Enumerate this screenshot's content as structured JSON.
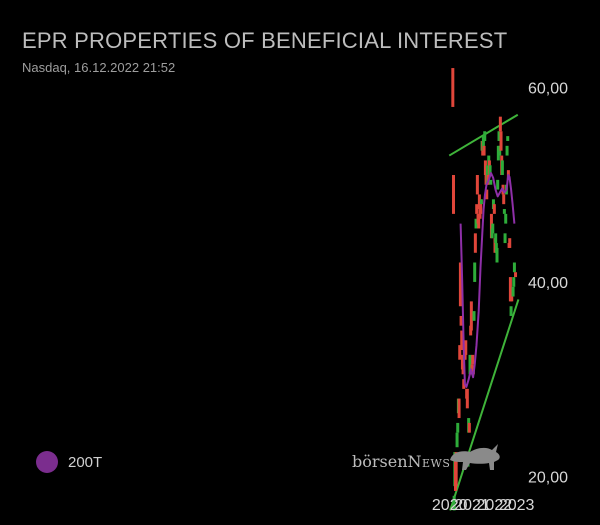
{
  "header": {
    "title": "EPR PROPERTIES OF BENEFICIAL INTEREST",
    "subtitle": "Nasdaq, 16.12.2022 21:52"
  },
  "legend": {
    "ma_label": "200T",
    "ma_color": "#7b2d8e"
  },
  "brand": {
    "part1": "börsen",
    "part2": "News"
  },
  "colors": {
    "up": "#2eac3a",
    "down": "#e0463a",
    "trend": "#3fb43a",
    "ma": "#8e2fa8",
    "axis_text": "#d8d8d8"
  },
  "chart_data": {
    "type": "candlestick",
    "title": "EPR PROPERTIES OF BENEFICIAL INTEREST",
    "subtitle": "Nasdaq, 16.12.2022 21:52",
    "x_ticks": [
      {
        "x": 2020.0,
        "label": "2020"
      },
      {
        "x": 2021.0,
        "label": "2021"
      },
      {
        "x": 2022.0,
        "label": "2022"
      },
      {
        "x": 2023.0,
        "label": "2023"
      }
    ],
    "y_ticks": [
      {
        "y": 20,
        "label": "20,00"
      },
      {
        "y": 40,
        "label": "40,00"
      },
      {
        "y": 60,
        "label": "60,00"
      }
    ],
    "xlim": [
      1999.85,
      2023.15
    ],
    "ylim": [
      15,
      69
    ],
    "candles": [
      {
        "x": 2020.05,
        "o": 70.5,
        "c": 69.0
      },
      {
        "x": 2020.08,
        "o": 72.5,
        "c": 71.0
      },
      {
        "x": 2020.11,
        "o": 73.5,
        "c": 72.5
      },
      {
        "x": 2020.14,
        "o": 62.0,
        "c": 58.0
      },
      {
        "x": 2020.17,
        "o": 51.0,
        "c": 47.0
      },
      {
        "x": 2020.2,
        "o": 16.5,
        "c": 18.0
      },
      {
        "x": 2020.23,
        "o": 19.0,
        "c": 22.5
      },
      {
        "x": 2020.26,
        "o": 22.0,
        "c": 18.5
      },
      {
        "x": 2020.29,
        "o": 22.5,
        "c": 19.0
      },
      {
        "x": 2020.33,
        "o": 23.0,
        "c": 24.5
      },
      {
        "x": 2020.36,
        "o": 24.5,
        "c": 25.5
      },
      {
        "x": 2020.39,
        "o": 26.5,
        "c": 28.0
      },
      {
        "x": 2020.42,
        "o": 28.0,
        "c": 26.0
      },
      {
        "x": 2020.45,
        "o": 33.5,
        "c": 32.0
      },
      {
        "x": 2020.48,
        "o": 42.0,
        "c": 37.5
      },
      {
        "x": 2020.51,
        "o": 36.5,
        "c": 35.5
      },
      {
        "x": 2020.54,
        "o": 35.0,
        "c": 33.0
      },
      {
        "x": 2020.57,
        "o": 32.5,
        "c": 31.0
      },
      {
        "x": 2020.6,
        "o": 31.5,
        "c": 30.5
      },
      {
        "x": 2020.63,
        "o": 30.0,
        "c": 29.0
      },
      {
        "x": 2020.66,
        "o": 32.0,
        "c": 33.5
      },
      {
        "x": 2020.69,
        "o": 33.0,
        "c": 32.0
      },
      {
        "x": 2020.72,
        "o": 34.0,
        "c": 32.5
      },
      {
        "x": 2020.76,
        "o": 29.0,
        "c": 28.0
      },
      {
        "x": 2020.79,
        "o": 29.0,
        "c": 27.0
      },
      {
        "x": 2020.82,
        "o": 21.0,
        "c": 22.0
      },
      {
        "x": 2020.85,
        "o": 24.5,
        "c": 26.0
      },
      {
        "x": 2020.88,
        "o": 25.5,
        "c": 24.5
      },
      {
        "x": 2020.91,
        "o": 30.5,
        "c": 32.5
      },
      {
        "x": 2020.94,
        "o": 35.5,
        "c": 34.5
      },
      {
        "x": 2020.97,
        "o": 38.0,
        "c": 35.0
      },
      {
        "x": 2021.0,
        "o": 31.5,
        "c": 30.5
      },
      {
        "x": 2021.03,
        "o": 32.5,
        "c": 31.5
      },
      {
        "x": 2021.06,
        "o": 31.0,
        "c": 30.5
      },
      {
        "x": 2021.09,
        "o": 36.0,
        "c": 37.0
      },
      {
        "x": 2021.12,
        "o": 40.0,
        "c": 42.0
      },
      {
        "x": 2021.15,
        "o": 45.0,
        "c": 43.0
      },
      {
        "x": 2021.18,
        "o": 45.5,
        "c": 46.5
      },
      {
        "x": 2021.21,
        "o": 48.0,
        "c": 47.0
      },
      {
        "x": 2021.24,
        "o": 51.0,
        "c": 49.0
      },
      {
        "x": 2021.27,
        "o": 47.0,
        "c": 46.0
      },
      {
        "x": 2021.3,
        "o": 47.0,
        "c": 45.5
      },
      {
        "x": 2021.33,
        "o": 49.0,
        "c": 47.5
      },
      {
        "x": 2021.36,
        "o": 48.0,
        "c": 46.5
      },
      {
        "x": 2021.39,
        "o": 48.5,
        "c": 47.0
      },
      {
        "x": 2021.42,
        "o": 48.0,
        "c": 48.5
      },
      {
        "x": 2021.45,
        "o": 53.5,
        "c": 54.5
      },
      {
        "x": 2021.48,
        "o": 54.5,
        "c": 53.0
      },
      {
        "x": 2021.51,
        "o": 53.5,
        "c": 55.0
      },
      {
        "x": 2021.54,
        "o": 54.0,
        "c": 53.0
      },
      {
        "x": 2021.57,
        "o": 54.5,
        "c": 55.5
      },
      {
        "x": 2021.6,
        "o": 52.5,
        "c": 51.0
      },
      {
        "x": 2021.63,
        "o": 51.5,
        "c": 50.0
      },
      {
        "x": 2021.66,
        "o": 49.5,
        "c": 48.5
      },
      {
        "x": 2021.69,
        "o": 50.0,
        "c": 52.0
      },
      {
        "x": 2021.72,
        "o": 51.0,
        "c": 50.0
      },
      {
        "x": 2021.75,
        "o": 52.0,
        "c": 53.0
      },
      {
        "x": 2021.78,
        "o": 52.5,
        "c": 51.0
      },
      {
        "x": 2021.81,
        "o": 51.0,
        "c": 52.0
      },
      {
        "x": 2021.84,
        "o": 50.0,
        "c": 50.5
      },
      {
        "x": 2021.87,
        "o": 47.0,
        "c": 44.5
      },
      {
        "x": 2021.9,
        "o": 44.5,
        "c": 45.5
      },
      {
        "x": 2021.93,
        "o": 45.0,
        "c": 46.0
      },
      {
        "x": 2021.96,
        "o": 47.5,
        "c": 48.5
      },
      {
        "x": 2022.0,
        "o": 48.0,
        "c": 47.0
      },
      {
        "x": 2022.03,
        "o": 44.5,
        "c": 43.0
      },
      {
        "x": 2022.06,
        "o": 44.0,
        "c": 45.0
      },
      {
        "x": 2022.09,
        "o": 43.0,
        "c": 44.0
      },
      {
        "x": 2022.12,
        "o": 42.0,
        "c": 43.5
      },
      {
        "x": 2022.15,
        "o": 49.5,
        "c": 50.5
      },
      {
        "x": 2022.18,
        "o": 52.5,
        "c": 54.0
      },
      {
        "x": 2022.21,
        "o": 54.5,
        "c": 55.5
      },
      {
        "x": 2022.24,
        "o": 53.0,
        "c": 54.0
      },
      {
        "x": 2022.27,
        "o": 57.0,
        "c": 55.5
      },
      {
        "x": 2022.3,
        "o": 55.5,
        "c": 53.5
      },
      {
        "x": 2022.33,
        "o": 53.0,
        "c": 51.0
      },
      {
        "x": 2022.36,
        "o": 51.0,
        "c": 52.5
      },
      {
        "x": 2022.39,
        "o": 50.0,
        "c": 49.0
      },
      {
        "x": 2022.42,
        "o": 49.0,
        "c": 48.0
      },
      {
        "x": 2022.45,
        "o": 47.0,
        "c": 47.5
      },
      {
        "x": 2022.48,
        "o": 44.0,
        "c": 45.0
      },
      {
        "x": 2022.51,
        "o": 46.0,
        "c": 47.0
      },
      {
        "x": 2022.54,
        "o": 49.0,
        "c": 50.0
      },
      {
        "x": 2022.57,
        "o": 53.0,
        "c": 54.0
      },
      {
        "x": 2022.6,
        "o": 54.5,
        "c": 55.0
      },
      {
        "x": 2022.63,
        "o": 51.5,
        "c": 50.5
      },
      {
        "x": 2022.66,
        "o": 44.0,
        "c": 43.5
      },
      {
        "x": 2022.69,
        "o": 44.5,
        "c": 43.5
      },
      {
        "x": 2022.72,
        "o": 40.5,
        "c": 38.0
      },
      {
        "x": 2022.75,
        "o": 36.5,
        "c": 37.5
      },
      {
        "x": 2022.78,
        "o": 38.5,
        "c": 38.0
      },
      {
        "x": 2022.81,
        "o": 39.0,
        "c": 38.5
      },
      {
        "x": 2022.84,
        "o": 38.5,
        "c": 39.5
      },
      {
        "x": 2022.87,
        "o": 39.5,
        "c": 40.5
      },
      {
        "x": 2022.9,
        "o": 41.0,
        "c": 42.0
      },
      {
        "x": 2022.95,
        "o": 41.0,
        "c": 40.5
      }
    ],
    "moving_average": {
      "name": "200T",
      "points": [
        {
          "x": 2020.49,
          "y": 46.0
        },
        {
          "x": 2020.56,
          "y": 40.0
        },
        {
          "x": 2020.63,
          "y": 33.0
        },
        {
          "x": 2020.68,
          "y": 29.5
        },
        {
          "x": 2020.75,
          "y": 29.2
        },
        {
          "x": 2020.85,
          "y": 30.0
        },
        {
          "x": 2020.95,
          "y": 31.0
        },
        {
          "x": 2021.05,
          "y": 30.2
        },
        {
          "x": 2021.12,
          "y": 31.5
        },
        {
          "x": 2021.2,
          "y": 33.5
        },
        {
          "x": 2021.3,
          "y": 37.0
        },
        {
          "x": 2021.38,
          "y": 41.5
        },
        {
          "x": 2021.46,
          "y": 45.0
        },
        {
          "x": 2021.52,
          "y": 47.5
        },
        {
          "x": 2021.58,
          "y": 49.0
        },
        {
          "x": 2021.65,
          "y": 50.0
        },
        {
          "x": 2021.75,
          "y": 50.5
        },
        {
          "x": 2021.85,
          "y": 51.2
        },
        {
          "x": 2021.95,
          "y": 50.7
        },
        {
          "x": 2022.05,
          "y": 49.5
        },
        {
          "x": 2022.15,
          "y": 48.8
        },
        {
          "x": 2022.25,
          "y": 49.2
        },
        {
          "x": 2022.35,
          "y": 49.6
        },
        {
          "x": 2022.45,
          "y": 49.2
        },
        {
          "x": 2022.55,
          "y": 49.5
        },
        {
          "x": 2022.62,
          "y": 51.0
        },
        {
          "x": 2022.68,
          "y": 50.8
        },
        {
          "x": 2022.75,
          "y": 49.5
        },
        {
          "x": 2022.82,
          "y": 48.0
        },
        {
          "x": 2022.9,
          "y": 46.0
        }
      ]
    },
    "trend_lines": [
      {
        "name": "upper",
        "from": {
          "x": 2019.98,
          "y": 53.0
        },
        "to": {
          "x": 2023.05,
          "y": 57.2
        }
      },
      {
        "name": "lower",
        "from": {
          "x": 2020.02,
          "y": 16.5
        },
        "to": {
          "x": 2023.08,
          "y": 38.2
        }
      }
    ],
    "grid": false,
    "legend": "bottom-left"
  }
}
